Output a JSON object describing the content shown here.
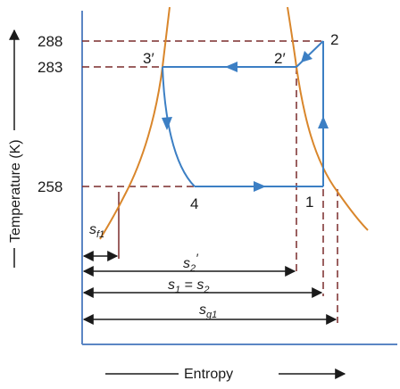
{
  "axes": {
    "y_label": "Temperature (K)",
    "x_label": "Entropy",
    "y_ticks": [
      "288",
      "283",
      "258"
    ]
  },
  "points": {
    "p2": "2",
    "p2p": "2′",
    "p3p": "3′",
    "p4": "4",
    "p1": "1"
  },
  "dimensions": {
    "sf1": {
      "base": "s",
      "sub": "f1"
    },
    "s2p": {
      "base": "s",
      "sub": "2",
      "sup": "′"
    },
    "s1s2": {
      "base1": "s",
      "sub1": "1",
      "eq": " = ",
      "base2": "s",
      "sub2": "2"
    },
    "sg1": {
      "base": "s",
      "sub": "g1"
    }
  },
  "colors": {
    "axis": "#5b86c4",
    "cycle": "#3c7fc4",
    "dome": "#d9862b",
    "dashed": "#7a2b2b",
    "arrow": "#1a1a1a"
  }
}
